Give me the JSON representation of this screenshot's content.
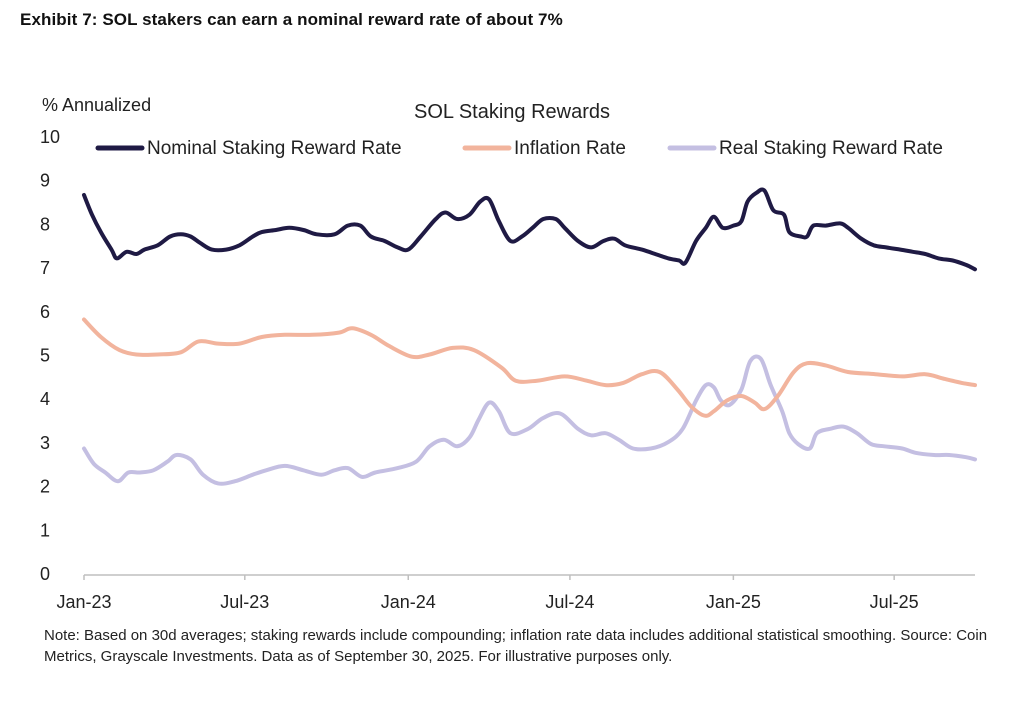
{
  "exhibit_title": "Exhibit 7: SOL stakers can earn a nominal reward rate of about 7%",
  "note": "Note: Based on 30d averages; staking rewards include compounding; inflation rate data includes additional statistical smoothing. Source: Coin Metrics, Grayscale Investments. Data as of September 30, 2025. For illustrative purposes only.",
  "colors": {
    "nominal": "#1f1a44",
    "inflation": "#f2b49d",
    "real": "#c4bfe2",
    "axis": "#bfbfbf"
  },
  "chart_data": {
    "type": "line",
    "title": "SOL Staking Rewards",
    "ylabel": "% Annualized",
    "xlabel": "",
    "ylim": [
      0,
      10
    ],
    "yticks": [
      0,
      1,
      2,
      3,
      4,
      5,
      6,
      7,
      8,
      9,
      10
    ],
    "xlim": [
      "2023-01-01",
      "2025-09-30"
    ],
    "xticks": [
      {
        "date": "2023-01-01",
        "label": "Jan-23"
      },
      {
        "date": "2023-07-01",
        "label": "Jul-23"
      },
      {
        "date": "2024-01-01",
        "label": "Jan-24"
      },
      {
        "date": "2024-07-01",
        "label": "Jul-24"
      },
      {
        "date": "2025-01-01",
        "label": "Jan-25"
      },
      {
        "date": "2025-07-01",
        "label": "Jul-25"
      }
    ],
    "legend_position": "top",
    "grid": false,
    "series": [
      {
        "name": "Nominal Staking Reward Rate",
        "color_key": "nominal",
        "points": [
          [
            "2023-01-01",
            8.65
          ],
          [
            "2023-01-10",
            8.2
          ],
          [
            "2023-01-20",
            7.8
          ],
          [
            "2023-02-01",
            7.4
          ],
          [
            "2023-02-07",
            7.2
          ],
          [
            "2023-02-18",
            7.35
          ],
          [
            "2023-03-01",
            7.3
          ],
          [
            "2023-03-10",
            7.4
          ],
          [
            "2023-03-25",
            7.5
          ],
          [
            "2023-04-08",
            7.7
          ],
          [
            "2023-04-20",
            7.75
          ],
          [
            "2023-05-01",
            7.7
          ],
          [
            "2023-05-12",
            7.55
          ],
          [
            "2023-05-25",
            7.4
          ],
          [
            "2023-06-10",
            7.4
          ],
          [
            "2023-06-25",
            7.5
          ],
          [
            "2023-07-10",
            7.7
          ],
          [
            "2023-07-20",
            7.8
          ],
          [
            "2023-08-05",
            7.85
          ],
          [
            "2023-08-20",
            7.9
          ],
          [
            "2023-09-05",
            7.85
          ],
          [
            "2023-09-20",
            7.75
          ],
          [
            "2023-10-10",
            7.75
          ],
          [
            "2023-10-25",
            7.95
          ],
          [
            "2023-11-08",
            7.95
          ],
          [
            "2023-11-20",
            7.7
          ],
          [
            "2023-12-05",
            7.6
          ],
          [
            "2023-12-20",
            7.45
          ],
          [
            "2024-01-01",
            7.4
          ],
          [
            "2024-01-15",
            7.7
          ],
          [
            "2024-02-01",
            8.1
          ],
          [
            "2024-02-12",
            8.25
          ],
          [
            "2024-02-25",
            8.1
          ],
          [
            "2024-03-10",
            8.2
          ],
          [
            "2024-03-22",
            8.5
          ],
          [
            "2024-04-01",
            8.55
          ],
          [
            "2024-04-12",
            8.05
          ],
          [
            "2024-04-25",
            7.6
          ],
          [
            "2024-05-08",
            7.7
          ],
          [
            "2024-05-20",
            7.9
          ],
          [
            "2024-06-01",
            8.1
          ],
          [
            "2024-06-15",
            8.1
          ],
          [
            "2024-06-25",
            7.9
          ],
          [
            "2024-07-10",
            7.6
          ],
          [
            "2024-07-25",
            7.45
          ],
          [
            "2024-08-08",
            7.6
          ],
          [
            "2024-08-20",
            7.65
          ],
          [
            "2024-09-01",
            7.5
          ],
          [
            "2024-09-20",
            7.4
          ],
          [
            "2024-10-05",
            7.3
          ],
          [
            "2024-10-20",
            7.2
          ],
          [
            "2024-11-01",
            7.15
          ],
          [
            "2024-11-08",
            7.1
          ],
          [
            "2024-11-20",
            7.6
          ],
          [
            "2024-12-01",
            7.9
          ],
          [
            "2024-12-10",
            8.15
          ],
          [
            "2024-12-20",
            7.9
          ],
          [
            "2025-01-01",
            7.95
          ],
          [
            "2025-01-10",
            8.05
          ],
          [
            "2025-01-17",
            8.5
          ],
          [
            "2025-01-27",
            8.7
          ],
          [
            "2025-02-05",
            8.75
          ],
          [
            "2025-02-15",
            8.3
          ],
          [
            "2025-02-27",
            8.2
          ],
          [
            "2025-03-05",
            7.8
          ],
          [
            "2025-03-18",
            7.7
          ],
          [
            "2025-03-25",
            7.7
          ],
          [
            "2025-04-01",
            7.95
          ],
          [
            "2025-04-15",
            7.95
          ],
          [
            "2025-05-01",
            8.0
          ],
          [
            "2025-05-10",
            7.9
          ],
          [
            "2025-05-25",
            7.65
          ],
          [
            "2025-06-08",
            7.5
          ],
          [
            "2025-06-22",
            7.45
          ],
          [
            "2025-07-08",
            7.4
          ],
          [
            "2025-07-22",
            7.35
          ],
          [
            "2025-08-05",
            7.3
          ],
          [
            "2025-08-20",
            7.2
          ],
          [
            "2025-09-05",
            7.15
          ],
          [
            "2025-09-20",
            7.05
          ],
          [
            "2025-09-30",
            6.95
          ]
        ]
      },
      {
        "name": "Inflation Rate",
        "color_key": "inflation",
        "points": [
          [
            "2023-01-01",
            5.8
          ],
          [
            "2023-01-20",
            5.4
          ],
          [
            "2023-02-10",
            5.1
          ],
          [
            "2023-03-01",
            5.0
          ],
          [
            "2023-03-25",
            5.0
          ],
          [
            "2023-04-20",
            5.05
          ],
          [
            "2023-05-10",
            5.3
          ],
          [
            "2023-06-01",
            5.25
          ],
          [
            "2023-06-25",
            5.25
          ],
          [
            "2023-07-20",
            5.4
          ],
          [
            "2023-08-15",
            5.45
          ],
          [
            "2023-09-15",
            5.45
          ],
          [
            "2023-10-15",
            5.5
          ],
          [
            "2023-10-30",
            5.6
          ],
          [
            "2023-11-20",
            5.45
          ],
          [
            "2023-12-10",
            5.2
          ],
          [
            "2024-01-05",
            4.95
          ],
          [
            "2024-01-25",
            5.0
          ],
          [
            "2024-02-20",
            5.15
          ],
          [
            "2024-03-15",
            5.1
          ],
          [
            "2024-04-15",
            4.7
          ],
          [
            "2024-05-01",
            4.4
          ],
          [
            "2024-05-25",
            4.4
          ],
          [
            "2024-06-25",
            4.5
          ],
          [
            "2024-07-20",
            4.4
          ],
          [
            "2024-08-10",
            4.3
          ],
          [
            "2024-08-30",
            4.35
          ],
          [
            "2024-09-20",
            4.55
          ],
          [
            "2024-10-10",
            4.6
          ],
          [
            "2024-10-30",
            4.2
          ],
          [
            "2024-11-15",
            3.8
          ],
          [
            "2024-11-30",
            3.6
          ],
          [
            "2024-12-10",
            3.7
          ],
          [
            "2024-12-25",
            3.95
          ],
          [
            "2025-01-10",
            4.05
          ],
          [
            "2025-01-25",
            3.9
          ],
          [
            "2025-02-05",
            3.75
          ],
          [
            "2025-02-20",
            4.05
          ],
          [
            "2025-03-10",
            4.6
          ],
          [
            "2025-03-25",
            4.8
          ],
          [
            "2025-04-15",
            4.75
          ],
          [
            "2025-05-10",
            4.6
          ],
          [
            "2025-06-10",
            4.55
          ],
          [
            "2025-07-10",
            4.5
          ],
          [
            "2025-08-05",
            4.55
          ],
          [
            "2025-08-25",
            4.45
          ],
          [
            "2025-09-15",
            4.35
          ],
          [
            "2025-09-30",
            4.3
          ]
        ]
      },
      {
        "name": "Real Staking Reward Rate",
        "color_key": "real",
        "points": [
          [
            "2023-01-01",
            2.85
          ],
          [
            "2023-01-12",
            2.5
          ],
          [
            "2023-01-25",
            2.3
          ],
          [
            "2023-02-08",
            2.1
          ],
          [
            "2023-02-20",
            2.3
          ],
          [
            "2023-03-05",
            2.3
          ],
          [
            "2023-03-20",
            2.35
          ],
          [
            "2023-04-05",
            2.55
          ],
          [
            "2023-04-15",
            2.7
          ],
          [
            "2023-05-01",
            2.6
          ],
          [
            "2023-05-15",
            2.25
          ],
          [
            "2023-06-01",
            2.05
          ],
          [
            "2023-06-20",
            2.1
          ],
          [
            "2023-07-10",
            2.25
          ],
          [
            "2023-07-25",
            2.35
          ],
          [
            "2023-08-15",
            2.45
          ],
          [
            "2023-09-05",
            2.35
          ],
          [
            "2023-09-25",
            2.25
          ],
          [
            "2023-10-10",
            2.35
          ],
          [
            "2023-10-25",
            2.4
          ],
          [
            "2023-11-10",
            2.2
          ],
          [
            "2023-11-25",
            2.3
          ],
          [
            "2023-12-20",
            2.4
          ],
          [
            "2024-01-10",
            2.55
          ],
          [
            "2024-01-25",
            2.9
          ],
          [
            "2024-02-10",
            3.05
          ],
          [
            "2024-02-25",
            2.9
          ],
          [
            "2024-03-10",
            3.1
          ],
          [
            "2024-03-20",
            3.5
          ],
          [
            "2024-04-01",
            3.9
          ],
          [
            "2024-04-12",
            3.7
          ],
          [
            "2024-04-25",
            3.2
          ],
          [
            "2024-05-15",
            3.3
          ],
          [
            "2024-06-01",
            3.55
          ],
          [
            "2024-06-20",
            3.65
          ],
          [
            "2024-07-10",
            3.3
          ],
          [
            "2024-07-25",
            3.15
          ],
          [
            "2024-08-10",
            3.2
          ],
          [
            "2024-08-25",
            3.05
          ],
          [
            "2024-09-10",
            2.85
          ],
          [
            "2024-09-30",
            2.85
          ],
          [
            "2024-10-20",
            3.0
          ],
          [
            "2024-11-05",
            3.3
          ],
          [
            "2024-11-20",
            3.95
          ],
          [
            "2024-12-01",
            4.3
          ],
          [
            "2024-12-10",
            4.25
          ],
          [
            "2024-12-18",
            3.95
          ],
          [
            "2024-12-28",
            3.85
          ],
          [
            "2025-01-10",
            4.2
          ],
          [
            "2025-01-20",
            4.85
          ],
          [
            "2025-02-01",
            4.9
          ],
          [
            "2025-02-12",
            4.3
          ],
          [
            "2025-02-25",
            3.7
          ],
          [
            "2025-03-05",
            3.2
          ],
          [
            "2025-03-15",
            2.95
          ],
          [
            "2025-03-28",
            2.85
          ],
          [
            "2025-04-05",
            3.2
          ],
          [
            "2025-04-20",
            3.3
          ],
          [
            "2025-05-05",
            3.35
          ],
          [
            "2025-05-20",
            3.2
          ],
          [
            "2025-06-05",
            2.95
          ],
          [
            "2025-06-20",
            2.9
          ],
          [
            "2025-07-10",
            2.85
          ],
          [
            "2025-07-25",
            2.75
          ],
          [
            "2025-08-15",
            2.7
          ],
          [
            "2025-09-01",
            2.7
          ],
          [
            "2025-09-20",
            2.65
          ],
          [
            "2025-09-30",
            2.6
          ]
        ]
      }
    ]
  }
}
